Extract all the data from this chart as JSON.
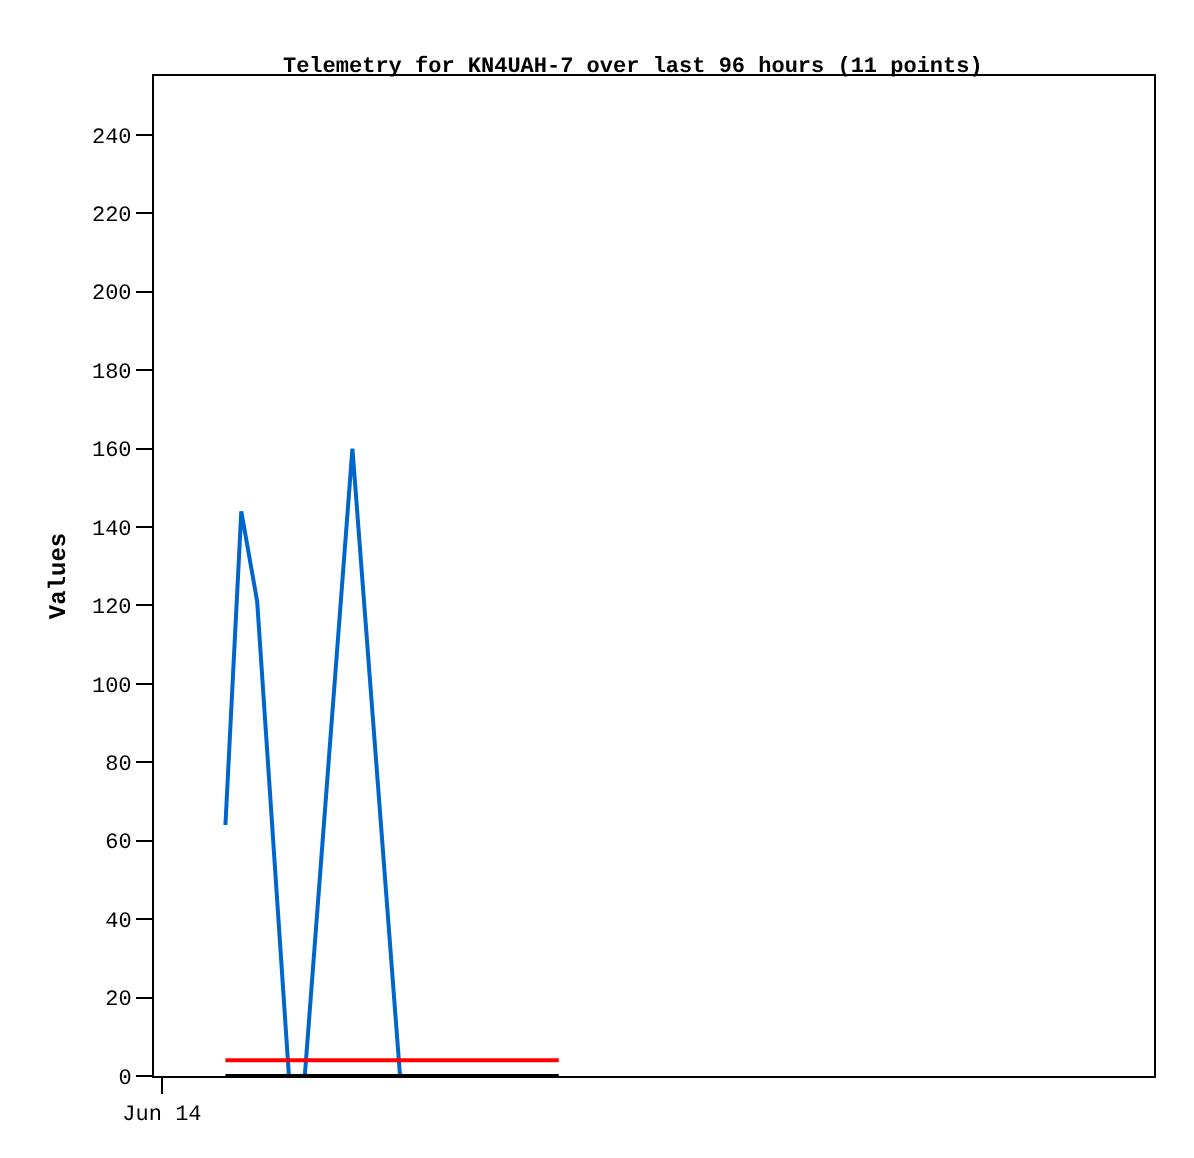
{
  "chart_data": {
    "type": "line",
    "title": "Telemetry for KN4UAH-7 over last 96 hours (11 points)",
    "ylabel": "Values",
    "categories": [
      "Jun 14",
      null,
      null,
      null,
      null,
      null,
      null,
      null,
      null,
      null,
      null,
      null,
      null,
      null,
      null,
      null,
      null,
      null,
      null,
      null,
      null,
      null,
      null,
      null,
      null,
      null,
      null,
      null,
      null,
      null,
      null,
      null,
      null,
      null,
      null,
      null,
      null,
      null,
      null,
      null,
      null,
      null,
      null,
      null,
      null,
      null,
      null,
      null,
      null,
      null,
      null,
      null,
      null,
      null,
      null,
      null,
      null,
      null,
      null,
      null,
      null,
      null,
      null
    ],
    "ylim": [
      0,
      255
    ],
    "yticks": [
      0,
      20,
      40,
      60,
      80,
      100,
      120,
      140,
      160,
      180,
      200,
      220,
      240
    ],
    "series": [
      {
        "color": "#0066cc",
        "values": [
          null,
          null,
          null,
          null,
          64,
          144,
          121,
          null,
          0,
          0,
          null,
          null,
          160,
          null,
          null,
          0,
          null,
          null,
          null,
          null,
          null,
          null,
          null,
          null,
          null,
          null,
          null,
          null,
          null,
          null,
          null,
          null,
          null,
          null,
          null,
          null,
          null,
          null,
          null,
          null,
          null,
          null,
          null,
          null,
          null,
          null,
          null,
          null,
          null,
          null,
          null,
          null,
          null,
          null,
          null,
          null,
          null,
          null,
          null,
          null,
          null,
          null,
          null
        ]
      },
      {
        "color": "#ff0000",
        "values": [
          null,
          null,
          null,
          null,
          4,
          null,
          null,
          null,
          null,
          null,
          null,
          null,
          null,
          null,
          null,
          null,
          null,
          null,
          null,
          null,
          null,
          null,
          null,
          null,
          null,
          4,
          null,
          null,
          null,
          null,
          null,
          null,
          null,
          null,
          null,
          null,
          null,
          null,
          null,
          null,
          null,
          null,
          null,
          null,
          null,
          null,
          null,
          null,
          null,
          null,
          null,
          null,
          null,
          null,
          null,
          null,
          null,
          null,
          null,
          null,
          null,
          null,
          null
        ]
      },
      {
        "color": "#000000",
        "values": [
          null,
          null,
          null,
          null,
          0,
          null,
          null,
          null,
          null,
          null,
          null,
          null,
          null,
          null,
          null,
          null,
          null,
          null,
          null,
          null,
          null,
          null,
          null,
          null,
          null,
          0,
          null,
          null,
          null,
          null,
          null,
          null,
          null,
          null,
          null,
          null,
          null,
          null,
          null,
          null,
          null,
          null,
          null,
          null,
          null,
          null,
          null,
          null,
          null,
          null,
          null,
          null,
          null,
          null,
          null,
          null,
          null,
          null,
          null,
          null,
          null,
          null,
          null
        ]
      }
    ],
    "grid": false,
    "marker": "none",
    "line_style": "solid"
  }
}
